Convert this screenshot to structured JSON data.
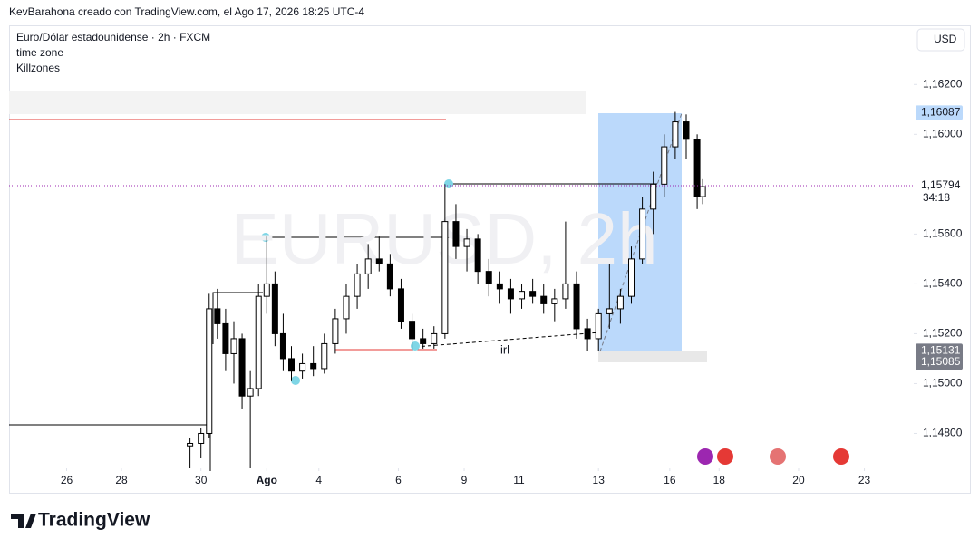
{
  "header": "KevBarahona creado con TradingView.com, el Ago 17, 2026 18:25 UTC-4",
  "legend": [
    "Euro/Dólar estadounidense · 2h · FXCM",
    "time zone",
    "Killzones"
  ],
  "currency": "USD",
  "watermark": "EURUSD, 2h",
  "brand": "TradingView",
  "annotation": "irl",
  "countdown": "34:18",
  "chart_data": {
    "type": "candlestick",
    "x": [
      66,
      70,
      73,
      76,
      79,
      82,
      85,
      88,
      91,
      94,
      97,
      100,
      103,
      107,
      111,
      115,
      119,
      123,
      127,
      131,
      135,
      139,
      143,
      147,
      151,
      155,
      159,
      163,
      167,
      171,
      175,
      179,
      183,
      187,
      191,
      195,
      199,
      203,
      207,
      211,
      215,
      219,
      223,
      227,
      231,
      235,
      239,
      243,
      247,
      251,
      253
    ],
    "open": [
      1.1475,
      1.1476,
      1.148,
      1.153,
      1.1524,
      1.1512,
      1.1518,
      1.1495,
      1.1498,
      1.1535,
      1.154,
      1.152,
      1.151,
      1.1505,
      1.1508,
      1.1506,
      1.1516,
      1.1526,
      1.1535,
      1.1544,
      1.155,
      1.1548,
      1.1538,
      1.1525,
      1.1518,
      1.1516,
      1.152,
      1.1565,
      1.1555,
      1.1558,
      1.1545,
      1.154,
      1.1538,
      1.1534,
      1.1537,
      1.1535,
      1.1532,
      1.1534,
      1.154,
      1.1522,
      1.1518,
      1.1528,
      1.153,
      1.1535,
      1.155,
      1.157,
      1.158,
      1.1595,
      1.1605,
      1.1598,
      1.1575
    ],
    "high": [
      1.1478,
      1.1482,
      1.1536,
      1.1538,
      1.153,
      1.1525,
      1.152,
      1.1505,
      1.154,
      1.1559,
      1.1545,
      1.1528,
      1.1515,
      1.1512,
      1.1515,
      1.152,
      1.153,
      1.154,
      1.1548,
      1.1556,
      1.1559,
      1.1552,
      1.1542,
      1.1528,
      1.1522,
      1.1523,
      1.158,
      1.1572,
      1.1562,
      1.156,
      1.155,
      1.1545,
      1.1542,
      1.154,
      1.1542,
      1.154,
      1.1538,
      1.1565,
      1.1545,
      1.1526,
      1.153,
      1.1548,
      1.1538,
      1.1555,
      1.1575,
      1.1585,
      1.16,
      1.1609,
      1.1608,
      1.16,
      1.1582
    ],
    "low": [
      1.1466,
      1.147,
      1.1478,
      1.1518,
      1.1505,
      1.15,
      1.149,
      1.1466,
      1.1495,
      1.1528,
      1.1515,
      1.1505,
      1.1501,
      1.1502,
      1.1503,
      1.1504,
      1.1512,
      1.152,
      1.153,
      1.1538,
      1.1545,
      1.1535,
      1.1522,
      1.1513,
      1.1514,
      1.1514,
      1.1518,
      1.155,
      1.1545,
      1.154,
      1.1535,
      1.1532,
      1.1528,
      1.153,
      1.1532,
      1.1528,
      1.1525,
      1.153,
      1.1518,
      1.1513,
      1.1513,
      1.1522,
      1.1524,
      1.1532,
      1.1548,
      1.156,
      1.1575,
      1.159,
      1.159,
      1.157,
      1.1572
    ],
    "close": [
      1.1476,
      1.148,
      1.153,
      1.1524,
      1.1512,
      1.1518,
      1.1495,
      1.1498,
      1.1535,
      1.154,
      1.152,
      1.151,
      1.1505,
      1.1508,
      1.1506,
      1.1516,
      1.1526,
      1.1535,
      1.1544,
      1.155,
      1.1548,
      1.1538,
      1.1525,
      1.1518,
      1.1516,
      1.152,
      1.1565,
      1.1555,
      1.1558,
      1.1545,
      1.154,
      1.1538,
      1.1534,
      1.1537,
      1.1535,
      1.1532,
      1.1534,
      1.154,
      1.1522,
      1.1518,
      1.1528,
      1.153,
      1.1535,
      1.155,
      1.157,
      1.158,
      1.1595,
      1.1605,
      1.1598,
      1.1575,
      1.1579
    ],
    "up_color": "#ffffff",
    "down_color": "#000000",
    "outline_color": "#000000",
    "xlim": [
      0,
      330
    ],
    "xticks": [
      {
        "value": 21,
        "label": "26"
      },
      {
        "value": 41,
        "label": "28"
      },
      {
        "value": 70,
        "label": "30"
      },
      {
        "value": 94,
        "label": "Ago"
      },
      {
        "value": 113,
        "label": "4"
      },
      {
        "value": 142,
        "label": "6"
      },
      {
        "value": 166,
        "label": "9"
      },
      {
        "value": 186,
        "label": "11"
      },
      {
        "value": 215,
        "label": "13"
      },
      {
        "value": 241,
        "label": "16"
      },
      {
        "value": 259,
        "label": "18"
      },
      {
        "value": 288,
        "label": "20"
      },
      {
        "value": 312,
        "label": "23"
      }
    ],
    "ylim": [
      1.1466,
      1.1643
    ],
    "yticks": [
      {
        "value": 1.162,
        "label": "1,16200"
      },
      {
        "value": 1.16,
        "label": "1,16000"
      },
      {
        "value": 1.156,
        "label": "1,15600"
      },
      {
        "value": 1.154,
        "label": "1,15400"
      },
      {
        "value": 1.152,
        "label": "1,15200"
      },
      {
        "value": 1.15,
        "label": "1,15000"
      },
      {
        "value": 1.148,
        "label": "1,14800"
      }
    ],
    "price_labels": [
      {
        "value": 1.16087,
        "label": "1,16087",
        "color": "#bbd9fb"
      },
      {
        "value": 1.15794,
        "label": "1,15794",
        "color": "#ffffff"
      },
      {
        "value": 1.15131,
        "label": "1,15131",
        "color": "#787b86"
      },
      {
        "value": 1.15085,
        "label": "1,15085",
        "color": "#787b86"
      }
    ]
  }
}
